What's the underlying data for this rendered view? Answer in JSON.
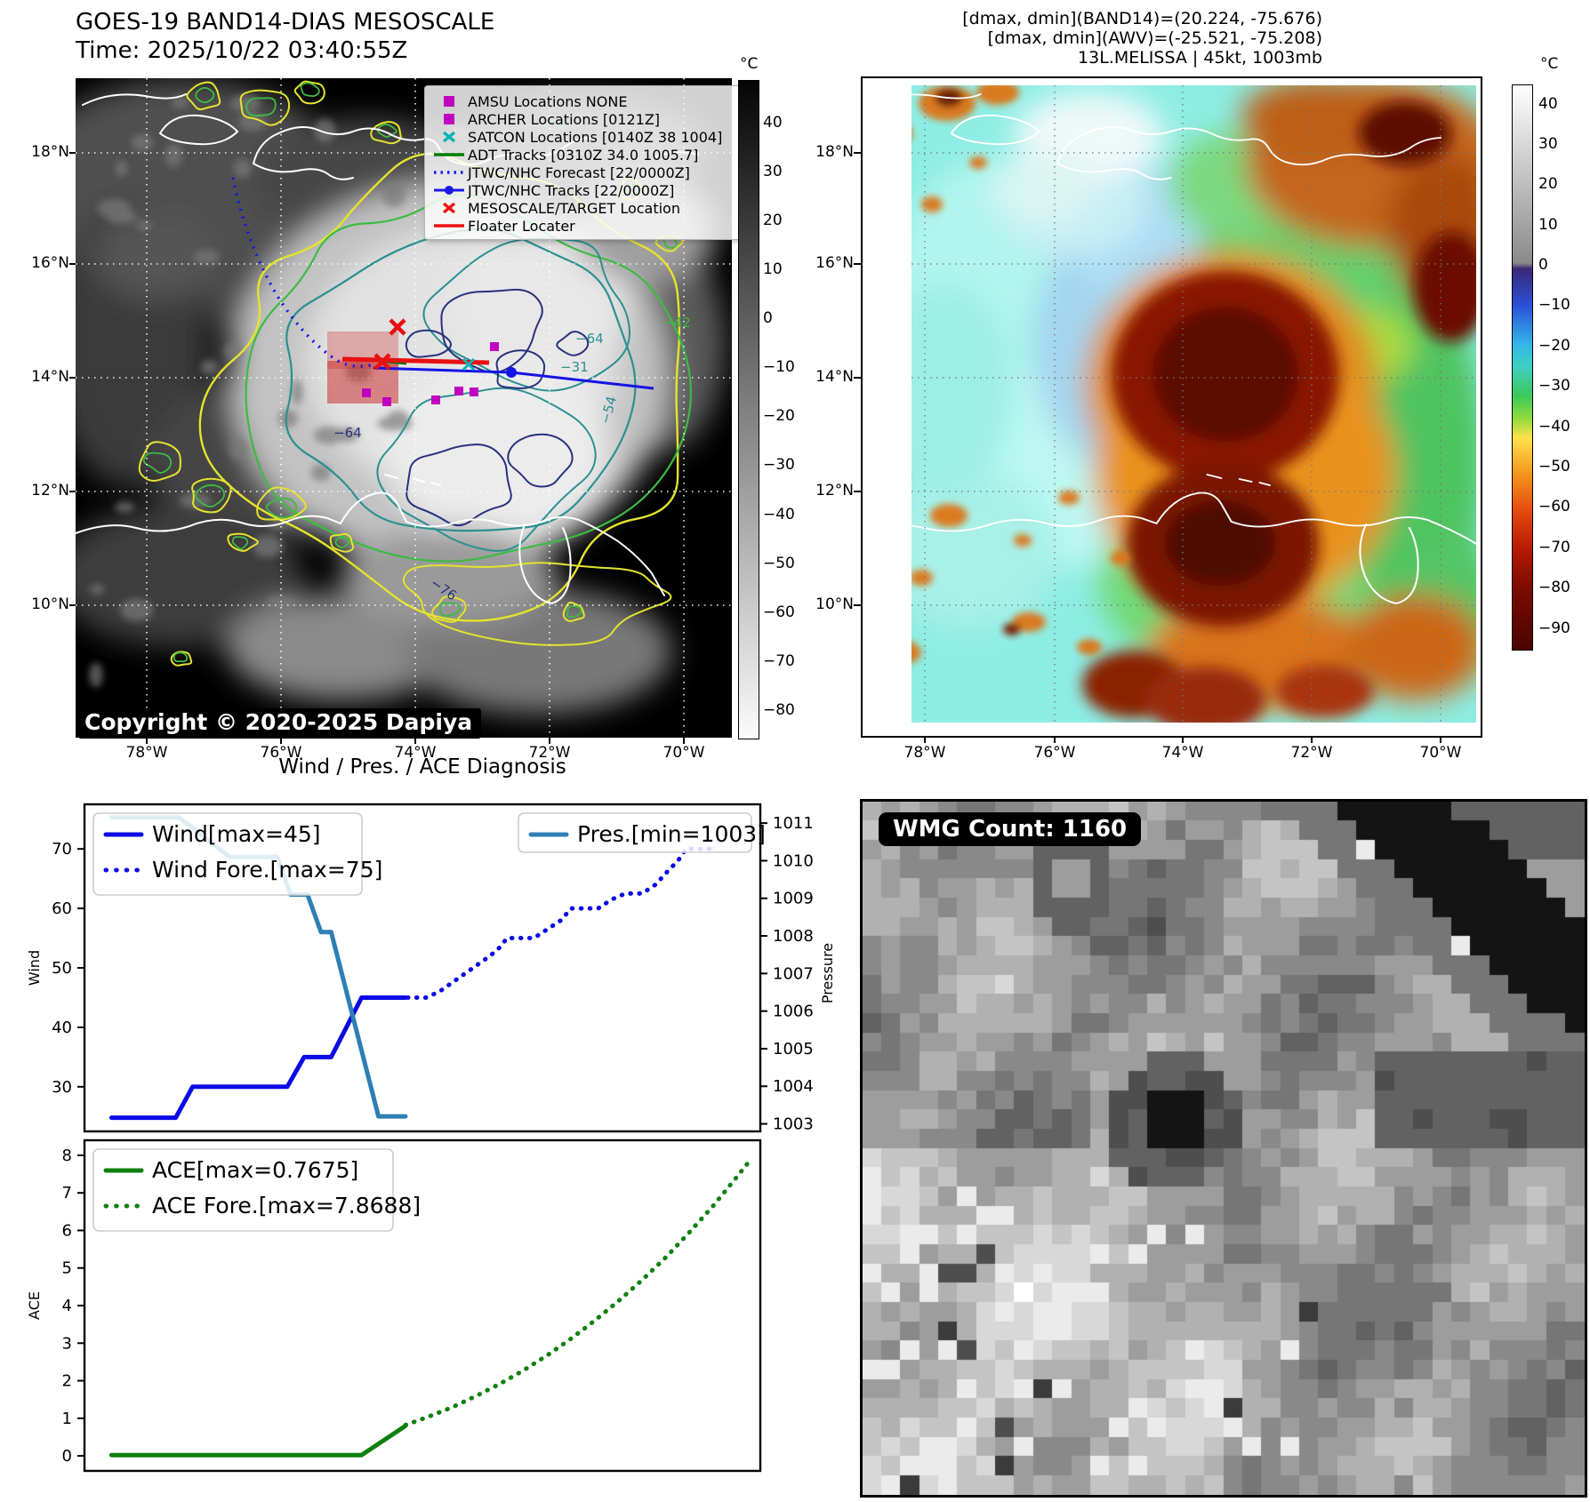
{
  "band14": {
    "title": "GOES-19 BAND14-DIAS MESOSCALE",
    "time": "Time: 2025/10/22 03:40:55Z",
    "copyright": "Copyright © 2020-2025 Dapiya",
    "lat_ticks": [
      "18°N",
      "16°N",
      "14°N",
      "12°N",
      "10°N"
    ],
    "lon_ticks": [
      "78°W",
      "76°W",
      "74°W",
      "72°W",
      "70°W"
    ],
    "colorbar_unit": "°C",
    "colorbar_ticks": [
      "40",
      "30",
      "20",
      "10",
      "0",
      "−10",
      "−20",
      "−30",
      "−40",
      "−50",
      "−60",
      "−70",
      "−80"
    ],
    "legend": [
      {
        "marker": "square",
        "color": "#c000c0",
        "label": "AMSU Locations NONE"
      },
      {
        "marker": "square",
        "color": "#c000c0",
        "label": "ARCHER Locations [0121Z]"
      },
      {
        "marker": "x",
        "color": "#00b5b5",
        "label": "SATCON Locations [0140Z 38 1004]"
      },
      {
        "marker": "line",
        "color": "#007a00",
        "label": "ADT Tracks [0310Z 34.0 1005.7]"
      },
      {
        "marker": "dotted",
        "color": "#1a1ae8",
        "label": "JTWC/NHC Forecast [22/0000Z]"
      },
      {
        "marker": "line-dot",
        "color": "#1a1ae8",
        "label": "JTWC/NHC Tracks [22/0000Z]"
      },
      {
        "marker": "x",
        "color": "#ee1111",
        "label": "MESOSCALE/TARGET Location"
      },
      {
        "marker": "line",
        "color": "#ee1111",
        "label": "Floater Locater"
      }
    ],
    "contour_labels": [
      "−54",
      "−64",
      "−42",
      "−31",
      "−64",
      "−54",
      "−76"
    ]
  },
  "awv": {
    "header_lines": [
      "[dmax, dmin](BAND14)=(20.224, -75.676)",
      "[dmax, dmin](AWV)=(-25.521, -75.208)",
      "13L.MELISSA | 45kt, 1003mb"
    ],
    "lat_ticks": [
      "18°N",
      "16°N",
      "14°N",
      "12°N",
      "10°N"
    ],
    "lon_ticks": [
      "78°W",
      "76°W",
      "74°W",
      "72°W",
      "70°W"
    ],
    "colorbar_unit": "°C",
    "colorbar_ticks": [
      "40",
      "30",
      "20",
      "10",
      "0",
      "−10",
      "−20",
      "−30",
      "−40",
      "−50",
      "−60",
      "−70",
      "−80",
      "−90"
    ]
  },
  "wmg": {
    "badge": "WMG Count: 1160"
  },
  "diagnosis_title": "Wind / Pres. / ACE Diagnosis",
  "chart_data": [
    {
      "type": "line",
      "title": "Wind / Pres. / ACE Diagnosis",
      "ylabel_left": "Wind",
      "ylabel_right": "Pressure",
      "ylim_left": [
        22.5,
        77.5
      ],
      "yticks_left": [
        "30",
        "40",
        "50",
        "60",
        "70"
      ],
      "ylim_right": [
        1002.8,
        1011.5
      ],
      "yticks_right": [
        "1003",
        "1004",
        "1005",
        "1006",
        "1007",
        "1008",
        "1009",
        "1010",
        "1011"
      ],
      "xlim": [
        0,
        1
      ],
      "grid": false,
      "series": [
        {
          "name": "Wind[max=45]",
          "axis": "left",
          "style": "solid",
          "color": "#0a0ae6",
          "points": [
            [
              0.04,
              24.8
            ],
            [
              0.135,
              24.8
            ],
            [
              0.16,
              30
            ],
            [
              0.3,
              30
            ],
            [
              0.325,
              35
            ],
            [
              0.365,
              35
            ],
            [
              0.41,
              45
            ],
            [
              0.475,
              45
            ]
          ]
        },
        {
          "name": "Wind Fore.[max=75]",
          "axis": "left",
          "style": "dotted",
          "color": "#0a0ae6",
          "points": [
            [
              0.465,
              45
            ],
            [
              0.505,
              45
            ],
            [
              0.525,
              46
            ],
            [
              0.55,
              48
            ],
            [
              0.575,
              50
            ],
            [
              0.6,
              52
            ],
            [
              0.615,
              53.5
            ],
            [
              0.625,
              55
            ],
            [
              0.665,
              55
            ],
            [
              0.685,
              56.5
            ],
            [
              0.705,
              58
            ],
            [
              0.72,
              60
            ],
            [
              0.76,
              60
            ],
            [
              0.78,
              61.5
            ],
            [
              0.8,
              62.5
            ],
            [
              0.825,
              62.5
            ],
            [
              0.845,
              64
            ],
            [
              0.865,
              66.5
            ],
            [
              0.878,
              68
            ],
            [
              0.89,
              70
            ],
            [
              0.93,
              70
            ]
          ]
        },
        {
          "name": "",
          "axis": "left",
          "style": "dotted-faint",
          "color": "#0a0ae6",
          "points": [
            [
              0.93,
              70
            ],
            [
              0.947,
              72.8
            ]
          ]
        },
        {
          "name": "Pres.[min=1003]",
          "axis": "right",
          "style": "solid",
          "color": "#2d7fb5",
          "points": [
            [
              0.04,
              1011.15
            ],
            [
              0.14,
              1011.15
            ],
            [
              0.215,
              1010.1
            ],
            [
              0.285,
              1010.1
            ],
            [
              0.305,
              1009.1
            ],
            [
              0.33,
              1009.1
            ],
            [
              0.35,
              1008.1
            ],
            [
              0.365,
              1008.1
            ],
            [
              0.435,
              1003.2
            ],
            [
              0.475,
              1003.2
            ]
          ]
        }
      ],
      "legend_left": [
        "Wind[max=45]",
        "Wind Fore.[max=75]"
      ],
      "legend_right": [
        "Pres.[min=1003]"
      ]
    },
    {
      "type": "line",
      "ylabel_left": "ACE",
      "ylim_left": [
        -0.4,
        8.4
      ],
      "yticks_left": [
        "0",
        "1",
        "2",
        "3",
        "4",
        "5",
        "6",
        "7",
        "8"
      ],
      "xlim": [
        0,
        1
      ],
      "grid": false,
      "series": [
        {
          "name": "ACE[max=0.7675]",
          "axis": "left",
          "style": "solid",
          "color": "#0f800f",
          "points": [
            [
              0.04,
              0.02
            ],
            [
              0.41,
              0.02
            ],
            [
              0.475,
              0.8
            ]
          ]
        },
        {
          "name": "ACE Fore.[max=7.8688]",
          "axis": "left",
          "style": "dotted",
          "color": "#0f800f",
          "points": [
            [
              0.475,
              0.82
            ],
            [
              0.51,
              1.05
            ],
            [
              0.545,
              1.3
            ],
            [
              0.58,
              1.6
            ],
            [
              0.615,
              1.92
            ],
            [
              0.65,
              2.28
            ],
            [
              0.685,
              2.68
            ],
            [
              0.72,
              3.12
            ],
            [
              0.755,
              3.6
            ],
            [
              0.79,
              4.12
            ],
            [
              0.825,
              4.68
            ],
            [
              0.86,
              5.28
            ],
            [
              0.895,
              5.95
            ],
            [
              0.93,
              6.65
            ],
            [
              0.962,
              7.35
            ],
            [
              0.985,
              7.87
            ]
          ]
        }
      ],
      "legend_left": [
        "ACE[max=0.7675]",
        "ACE Fore.[max=7.8688]"
      ]
    }
  ]
}
